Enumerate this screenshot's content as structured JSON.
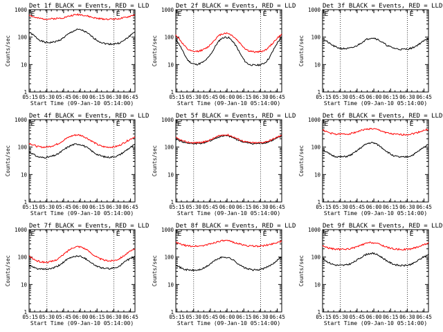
{
  "chart_data": [
    {
      "type": "line",
      "title": "Det 1f BLACK = Events, RED = LLD",
      "xlabel": "Start Time (09-Jan-10 05:14:00)",
      "ylabel": "Counts/sec",
      "y_scale": "log",
      "ylim": [
        1,
        1000
      ],
      "x_tick_labels": [
        "05:15",
        "05:30",
        "05:45",
        "06:00",
        "06:15",
        "06:30",
        "06:45"
      ],
      "y_tick_labels": [
        "1",
        "10",
        "100",
        "1000"
      ],
      "markers": [
        "E",
        "E"
      ],
      "series": [
        {
          "color": "#000000",
          "y": [
            150,
            120,
            90,
            72,
            64,
            63,
            66,
            72,
            85,
            110,
            140,
            170,
            190,
            180,
            150,
            118,
            90,
            72,
            62,
            57,
            56,
            57,
            60,
            70,
            90,
            120,
            160
          ]
        },
        {
          "color": "#ff0000",
          "y": [
            650,
            550,
            490,
            470,
            460,
            460,
            470,
            480,
            500,
            540,
            590,
            640,
            670,
            650,
            600,
            550,
            500,
            475,
            460,
            455,
            455,
            460,
            470,
            490,
            530,
            590,
            660
          ]
        }
      ]
    },
    {
      "type": "line",
      "title": "Det 2f BLACK = Events, RED = LLD",
      "xlabel": "Start Time (09-Jan-10 05:14:00)",
      "ylabel": "Counts/sec",
      "y_scale": "log",
      "ylim": [
        1,
        1000
      ],
      "x_tick_labels": [
        "05:15",
        "05:30",
        "05:45",
        "06:00",
        "06:15",
        "06:30",
        "06:45"
      ],
      "y_tick_labels": [
        "1",
        "10",
        "100",
        "1000"
      ],
      "markers": [
        "E",
        "E"
      ],
      "series": [
        {
          "color": "#000000",
          "y": [
            85,
            50,
            25,
            14,
            11,
            10,
            11,
            13,
            18,
            30,
            55,
            85,
            100,
            95,
            70,
            42,
            22,
            13,
            10,
            9.5,
            9.5,
            10,
            12,
            18,
            35,
            65,
            100
          ]
        },
        {
          "color": "#ff0000",
          "y": [
            120,
            80,
            50,
            35,
            30,
            30,
            32,
            36,
            45,
            65,
            95,
            125,
            140,
            135,
            110,
            80,
            55,
            38,
            31,
            29,
            29,
            30,
            34,
            45,
            65,
            95,
            125
          ]
        }
      ]
    },
    {
      "type": "line",
      "title": "Det 3f BLACK = Events, RED = LLD",
      "xlabel": "Start Time (09-Jan-10 05:14:00)",
      "ylabel": "Counts/sec",
      "y_scale": "log",
      "ylim": [
        1,
        1000
      ],
      "x_tick_labels": [
        "05:15",
        "05:30",
        "05:45",
        "06:00",
        "06:15",
        "06:30",
        "06:45"
      ],
      "y_tick_labels": [
        "1",
        "10",
        "100",
        "1000"
      ],
      "markers": [
        "E",
        "E"
      ],
      "series": [
        {
          "color": "#000000",
          "y": [
            85,
            70,
            55,
            45,
            40,
            38,
            38,
            40,
            45,
            55,
            70,
            85,
            95,
            90,
            75,
            60,
            48,
            42,
            38,
            36,
            36,
            37,
            40,
            48,
            60,
            75,
            90
          ]
        }
      ]
    },
    {
      "type": "line",
      "title": "Det 4f BLACK = Events, RED = LLD",
      "xlabel": "Start Time (09-Jan-10 05:14:00)",
      "ylabel": "Counts/sec",
      "y_scale": "log",
      "ylim": [
        1,
        1000
      ],
      "x_tick_labels": [
        "05:15",
        "05:30",
        "05:45",
        "06:00",
        "06:15",
        "06:30",
        "06:45"
      ],
      "y_tick_labels": [
        "1",
        "10",
        "100",
        "1000"
      ],
      "markers": [
        "E",
        "E"
      ],
      "series": [
        {
          "color": "#000000",
          "y": [
            70,
            55,
            45,
            42,
            42,
            44,
            48,
            55,
            70,
            90,
            110,
            125,
            130,
            120,
            100,
            80,
            62,
            52,
            46,
            43,
            43,
            45,
            50,
            62,
            80,
            100,
            125
          ]
        },
        {
          "color": "#ff0000",
          "y": [
            140,
            120,
            105,
            100,
            100,
            105,
            115,
            130,
            160,
            200,
            240,
            270,
            280,
            260,
            220,
            180,
            145,
            120,
            105,
            100,
            100,
            102,
            112,
            135,
            165,
            200,
            240
          ]
        }
      ]
    },
    {
      "type": "line",
      "title": "Det 5f BLACK = Events, RED = LLD",
      "xlabel": "Start Time (09-Jan-10 05:14:00)",
      "ylabel": "Counts/sec",
      "y_scale": "log",
      "ylim": [
        1,
        1000
      ],
      "x_tick_labels": [
        "05:15",
        "05:30",
        "05:45",
        "06:00",
        "06:15",
        "06:30",
        "06:45"
      ],
      "y_tick_labels": [
        "1",
        "10",
        "100",
        "1000"
      ],
      "markers": [
        "E",
        "E"
      ],
      "series": [
        {
          "color": "#000000",
          "y": [
            200,
            170,
            150,
            140,
            135,
            135,
            138,
            145,
            160,
            185,
            215,
            245,
            260,
            250,
            220,
            190,
            165,
            148,
            138,
            134,
            134,
            137,
            145,
            160,
            185,
            215,
            245
          ]
        },
        {
          "color": "#ff0000",
          "y": [
            220,
            185,
            160,
            150,
            145,
            145,
            148,
            155,
            172,
            200,
            235,
            265,
            285,
            272,
            240,
            205,
            178,
            158,
            148,
            143,
            143,
            146,
            156,
            172,
            200,
            235,
            265
          ]
        }
      ]
    },
    {
      "type": "line",
      "title": "Det 6f BLACK = Events, RED = LLD",
      "xlabel": "Start Time (09-Jan-10 05:14:00)",
      "ylabel": "Counts/sec",
      "y_scale": "log",
      "ylim": [
        1,
        1000
      ],
      "x_tick_labels": [
        "05:15",
        "05:30",
        "05:45",
        "06:00",
        "06:15",
        "06:30",
        "06:45"
      ],
      "y_tick_labels": [
        "1",
        "10",
        "100",
        "1000"
      ],
      "markers": [
        "E",
        "E"
      ],
      "series": [
        {
          "color": "#000000",
          "y": [
            85,
            65,
            52,
            46,
            44,
            44,
            46,
            52,
            65,
            85,
            110,
            135,
            145,
            135,
            110,
            85,
            65,
            52,
            46,
            43,
            43,
            45,
            50,
            62,
            80,
            100,
            130
          ]
        },
        {
          "color": "#ff0000",
          "y": [
            420,
            360,
            320,
            300,
            295,
            295,
            300,
            315,
            345,
            385,
            425,
            455,
            465,
            450,
            410,
            365,
            325,
            300,
            290,
            285,
            285,
            290,
            305,
            330,
            370,
            410,
            450
          ]
        }
      ]
    },
    {
      "type": "line",
      "title": "Det 7f BLACK = Events, RED = LLD",
      "xlabel": "Start Time (09-Jan-10 05:14:00)",
      "ylabel": "Counts/sec",
      "y_scale": "log",
      "ylim": [
        1,
        1000
      ],
      "x_tick_labels": [
        "05:15",
        "05:30",
        "05:45",
        "06:00",
        "06:15",
        "06:30",
        "06:45"
      ],
      "y_tick_labels": [
        "1",
        "10",
        "100",
        "1000"
      ],
      "markers": [
        "E",
        "E"
      ],
      "series": [
        {
          "color": "#000000",
          "y": [
            50,
            42,
            38,
            36,
            36,
            37,
            40,
            46,
            58,
            75,
            92,
            105,
            110,
            102,
            85,
            68,
            52,
            44,
            40,
            38,
            38,
            40,
            46,
            58,
            75,
            90,
            105
          ]
        },
        {
          "color": "#ff0000",
          "y": [
            110,
            85,
            72,
            66,
            65,
            66,
            72,
            85,
            108,
            145,
            190,
            230,
            245,
            230,
            190,
            150,
            115,
            92,
            80,
            74,
            73,
            76,
            86,
            105,
            135,
            165,
            195
          ]
        }
      ]
    },
    {
      "type": "line",
      "title": "Det 8f BLACK = Events, RED = LLD",
      "xlabel": "Start Time (09-Jan-10 05:14:00)",
      "ylabel": "Counts/sec",
      "y_scale": "log",
      "ylim": [
        1,
        1000
      ],
      "x_tick_labels": [
        "05:15",
        "05:30",
        "05:45",
        "06:00",
        "06:15",
        "06:30",
        "06:45"
      ],
      "y_tick_labels": [
        "1",
        "10",
        "100",
        "1000"
      ],
      "markers": [
        "E",
        "E"
      ],
      "series": [
        {
          "color": "#000000",
          "y": [
            55,
            42,
            36,
            34,
            33,
            33,
            35,
            40,
            50,
            65,
            82,
            95,
            100,
            95,
            80,
            62,
            48,
            40,
            36,
            34,
            34,
            36,
            40,
            48,
            60,
            80,
            100
          ]
        },
        {
          "color": "#ff0000",
          "y": [
            340,
            300,
            270,
            255,
            250,
            250,
            255,
            268,
            290,
            320,
            355,
            385,
            395,
            385,
            355,
            320,
            290,
            268,
            255,
            250,
            250,
            255,
            265,
            285,
            315,
            345,
            380
          ]
        }
      ]
    },
    {
      "type": "line",
      "title": "Det 9f BLACK = Events, RED = LLD",
      "xlabel": "Start Time (09-Jan-10 05:14:00)",
      "ylabel": "Counts/sec",
      "y_scale": "log",
      "ylim": [
        1,
        1000
      ],
      "x_tick_labels": [
        "05:15",
        "05:30",
        "05:45",
        "06:00",
        "06:15",
        "06:30",
        "06:45"
      ],
      "y_tick_labels": [
        "1",
        "10",
        "100",
        "1000"
      ],
      "markers": [
        "E",
        "E"
      ],
      "series": [
        {
          "color": "#000000",
          "y": [
            90,
            70,
            58,
            52,
            50,
            50,
            52,
            58,
            70,
            88,
            110,
            130,
            138,
            130,
            110,
            88,
            70,
            58,
            52,
            49,
            49,
            51,
            56,
            68,
            85,
            105,
            125
          ]
        },
        {
          "color": "#ff0000",
          "y": [
            260,
            225,
            205,
            195,
            192,
            192,
            196,
            205,
            225,
            255,
            290,
            325,
            340,
            325,
            290,
            255,
            225,
            205,
            195,
            190,
            190,
            194,
            204,
            225,
            255,
            290,
            325
          ]
        }
      ]
    }
  ]
}
